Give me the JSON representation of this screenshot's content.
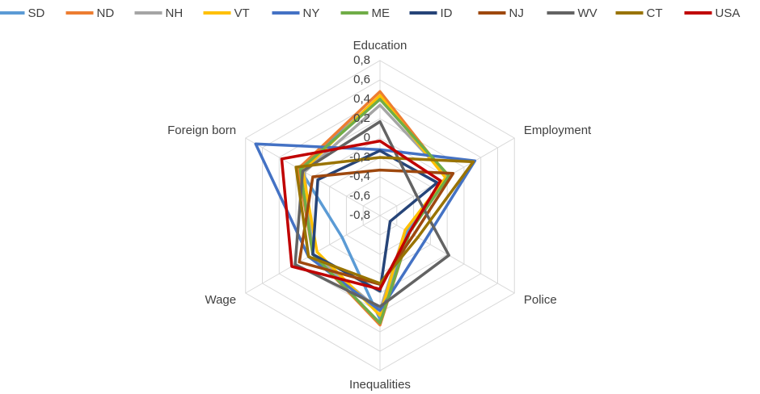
{
  "chart_data": {
    "type": "radar",
    "categories": [
      "Education",
      "Employment",
      "Police",
      "Inequalities",
      "Wage",
      "Foreign born"
    ],
    "ylim": [
      -0.8,
      0.8
    ],
    "yticks": [
      {
        "value": 0.8,
        "label": "0,8"
      },
      {
        "value": 0.6,
        "label": "0,6"
      },
      {
        "value": 0.4,
        "label": "0,4"
      },
      {
        "value": 0.2,
        "label": "0,2"
      },
      0,
      {
        "value": -0.2,
        "label": "-0,2"
      },
      {
        "value": -0.4,
        "label": "-0,4"
      },
      {
        "value": -0.6,
        "label": "-0,6"
      },
      {
        "value": -0.8,
        "label": "-0,8"
      }
    ],
    "grid": true,
    "legend": "top",
    "series": [
      {
        "name": "SD",
        "color": "#5b9bd5",
        "values": [
          0.43,
          0.0,
          -0.47,
          0.27,
          -0.35,
          0.15
        ]
      },
      {
        "name": "ND",
        "color": "#ed7d31",
        "values": [
          0.48,
          0.0,
          -0.45,
          0.33,
          0.0,
          0.17
        ]
      },
      {
        "name": "NH",
        "color": "#a5a5a5",
        "values": [
          0.34,
          0.0,
          -0.5,
          0.18,
          0.0,
          0.1
        ]
      },
      {
        "name": "VT",
        "color": "#ffc000",
        "values": [
          0.44,
          -0.02,
          -0.5,
          0.23,
          -0.05,
          0.12
        ]
      },
      {
        "name": "NY",
        "color": "#4472c4",
        "values": [
          -0.12,
          0.33,
          -0.27,
          0.18,
          0.05,
          0.68
        ]
      },
      {
        "name": "ME",
        "color": "#70ad47",
        "values": [
          0.4,
          0.02,
          -0.45,
          0.31,
          0.0,
          0.15
        ]
      },
      {
        "name": "ID",
        "color": "#264478",
        "values": [
          -0.13,
          -0.12,
          -0.68,
          -0.02,
          0.0,
          -0.06
        ]
      },
      {
        "name": "NJ",
        "color": "#9e480e",
        "values": [
          -0.33,
          0.07,
          -0.4,
          -0.09,
          0.16,
          0.0
        ]
      },
      {
        "name": "WV",
        "color": "#636363",
        "values": [
          0.17,
          -0.37,
          0.02,
          0.14,
          0.21,
          0.12
        ]
      },
      {
        "name": "CT",
        "color": "#997300",
        "values": [
          -0.2,
          0.31,
          -0.35,
          -0.1,
          0.05,
          0.2
        ]
      },
      {
        "name": "USA",
        "color": "#c00000",
        "values": [
          -0.03,
          -0.08,
          -0.45,
          -0.04,
          0.25,
          0.37
        ]
      }
    ]
  }
}
